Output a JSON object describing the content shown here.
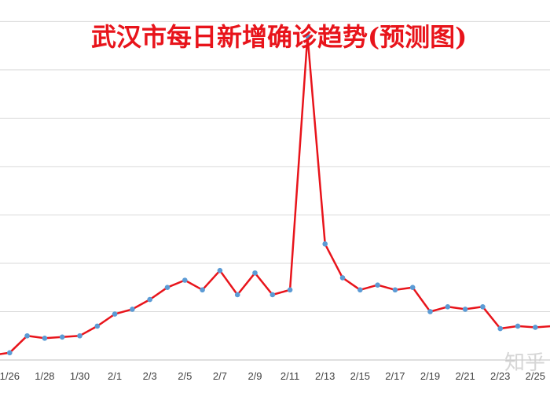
{
  "chart_data": {
    "type": "line",
    "title": "武汉市每日新增确诊趋势(预测图)",
    "grid": true,
    "legend": "none",
    "colors": {
      "line": "#e8141b",
      "marker": "#5b9bd5",
      "grid": "#d9d9d9",
      "title": "#e8141b",
      "axis": "#bfbfbf"
    },
    "ylim": [
      0,
      14.5
    ],
    "x": [
      "1/25",
      "1/26",
      "1/27",
      "1/28",
      "1/29",
      "1/30",
      "1/31",
      "2/1",
      "2/2",
      "2/3",
      "2/4",
      "2/5",
      "2/6",
      "2/7",
      "2/8",
      "2/9",
      "2/10",
      "2/11",
      "2/12",
      "2/13",
      "2/14",
      "2/15",
      "2/16",
      "2/17",
      "2/18",
      "2/19",
      "2/20",
      "2/21",
      "2/22",
      "2/23",
      "2/24",
      "2/25",
      "2/26"
    ],
    "tick_labels": [
      "1/26",
      "1/28",
      "1/30",
      "2/1",
      "2/3",
      "2/5",
      "2/7",
      "2/9",
      "2/11",
      "2/13",
      "2/15",
      "2/17",
      "2/19",
      "2/21",
      "2/23",
      "2/25"
    ],
    "values": [
      0.2,
      0.3,
      1.0,
      0.9,
      0.95,
      1.0,
      1.4,
      1.9,
      2.1,
      2.5,
      3.0,
      3.3,
      2.9,
      3.7,
      2.7,
      3.6,
      2.7,
      2.9,
      13.4,
      4.8,
      3.4,
      2.9,
      3.1,
      2.9,
      3.0,
      2.0,
      2.2,
      2.1,
      2.2,
      1.3,
      1.4,
      1.35,
      1.4
    ],
    "watermark": "知乎"
  }
}
